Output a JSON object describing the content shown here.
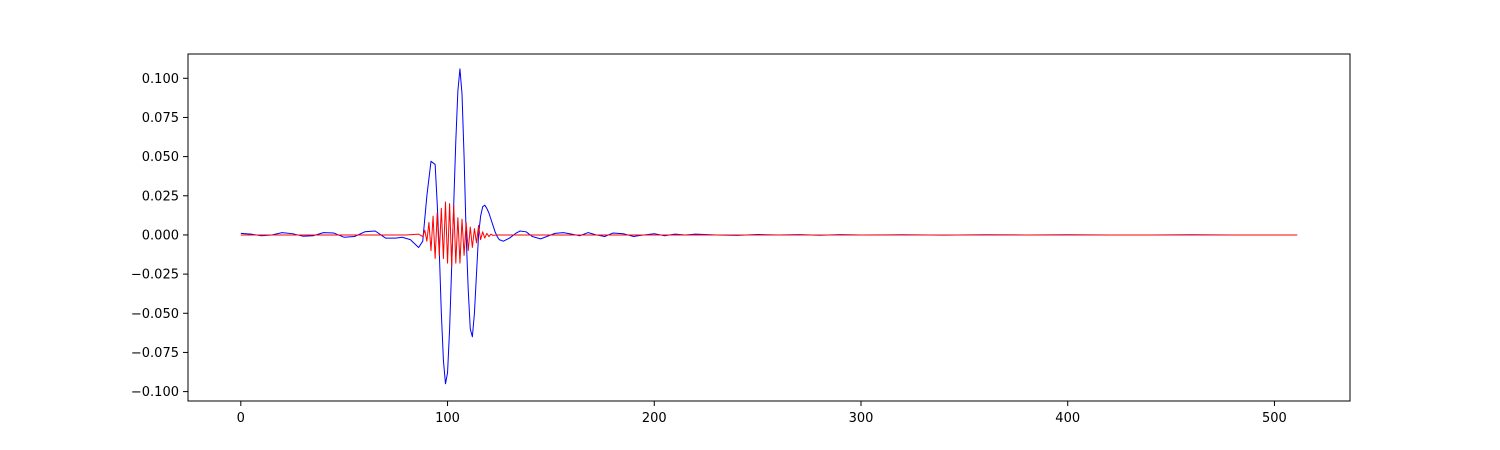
{
  "chart_data": {
    "type": "line",
    "title": "",
    "xlabel": "",
    "ylabel": "",
    "xlim": [
      -25.55,
      536.55
    ],
    "ylim": [
      -0.106,
      0.1155
    ],
    "grid": false,
    "legend": "none",
    "xticks": [
      0,
      100,
      200,
      300,
      400,
      500
    ],
    "xtick_labels": [
      "0",
      "100",
      "200",
      "300",
      "400",
      "500"
    ],
    "yticks": [
      -0.1,
      -0.075,
      -0.05,
      -0.025,
      0.0,
      0.025,
      0.05,
      0.075,
      0.1
    ],
    "ytick_labels": [
      "−0.100",
      "−0.075",
      "−0.050",
      "−0.025",
      "0.000",
      "0.025",
      "0.050",
      "0.075",
      "0.100"
    ],
    "series": [
      {
        "color": "#0000ff",
        "x": [
          0,
          5,
          10,
          15,
          20,
          25,
          30,
          35,
          40,
          45,
          50,
          55,
          60,
          65,
          70,
          75,
          78,
          82,
          86,
          88,
          90,
          92,
          94,
          95,
          96,
          97,
          98,
          99,
          100,
          101,
          102,
          103,
          104,
          105,
          106,
          107,
          108,
          109,
          110,
          111,
          112,
          113,
          114,
          115,
          116,
          117,
          118,
          119,
          120,
          121,
          122,
          123,
          124,
          125,
          127,
          130,
          133,
          135,
          138,
          141,
          145,
          148,
          152,
          156,
          160,
          164,
          168,
          172,
          176,
          180,
          185,
          190,
          195,
          200,
          205,
          210,
          215,
          220,
          230,
          240,
          250,
          260,
          270,
          280,
          290,
          300,
          320,
          340,
          360,
          380,
          400,
          420,
          440,
          460,
          480,
          500,
          511
        ],
        "y": [
          0.001,
          0.0005,
          -0.0005,
          0.0,
          0.0015,
          0.0008,
          -0.0008,
          -0.0005,
          0.0015,
          0.0012,
          -0.0015,
          -0.001,
          0.002,
          0.0025,
          -0.002,
          -0.002,
          -0.0015,
          -0.003,
          -0.008,
          -0.004,
          0.025,
          0.047,
          0.045,
          0.02,
          -0.01,
          -0.05,
          -0.08,
          -0.095,
          -0.088,
          -0.06,
          -0.02,
          0.02,
          0.06,
          0.092,
          0.106,
          0.09,
          0.05,
          0.0,
          -0.035,
          -0.06,
          -0.065,
          -0.05,
          -0.025,
          0.0,
          0.012,
          0.018,
          0.019,
          0.017,
          0.014,
          0.01,
          0.006,
          0.002,
          -0.001,
          -0.003,
          -0.004,
          -0.002,
          0.001,
          0.0025,
          0.002,
          -0.001,
          -0.0025,
          -0.001,
          0.001,
          0.0015,
          0.0005,
          -0.0005,
          0.0015,
          0.0,
          -0.001,
          0.0012,
          0.0008,
          -0.001,
          0.0,
          0.0008,
          -0.0005,
          0.0005,
          0.0,
          0.0005,
          0.0,
          -0.0003,
          0.0003,
          0.0,
          0.0002,
          -0.0002,
          0.0002,
          0.0,
          0.0001,
          -0.0001,
          0.0001,
          0.0,
          0.0001,
          0.0,
          0.0,
          0.0001,
          0.0,
          0.0,
          0.0
        ]
      },
      {
        "color": "#ff0000",
        "x": [
          0,
          20,
          40,
          60,
          80,
          86,
          88,
          89,
          90,
          91,
          92,
          93,
          94,
          95,
          96,
          97,
          98,
          99,
          100,
          101,
          102,
          103,
          104,
          105,
          106,
          107,
          108,
          109,
          110,
          111,
          112,
          113,
          114,
          115,
          116,
          117,
          118,
          119,
          120,
          121,
          122,
          124,
          130,
          160,
          200,
          300,
          400,
          511
        ],
        "y": [
          0.0,
          0.0,
          0.0,
          0.0,
          0.0,
          0.0005,
          -0.001,
          0.003,
          -0.004,
          0.008,
          -0.01,
          0.012,
          -0.015,
          0.014,
          -0.013,
          0.017,
          -0.015,
          0.021,
          -0.018,
          0.02,
          -0.02,
          0.019,
          -0.018,
          0.011,
          -0.018,
          0.01,
          -0.013,
          0.008,
          -0.01,
          0.005,
          -0.008,
          0.004,
          -0.005,
          0.006,
          -0.003,
          0.002,
          -0.002,
          0.001,
          -0.001,
          0.0005,
          -0.0003,
          0.0,
          0.0,
          0.0,
          0.0,
          0.0,
          0.0,
          0.0
        ]
      }
    ]
  }
}
